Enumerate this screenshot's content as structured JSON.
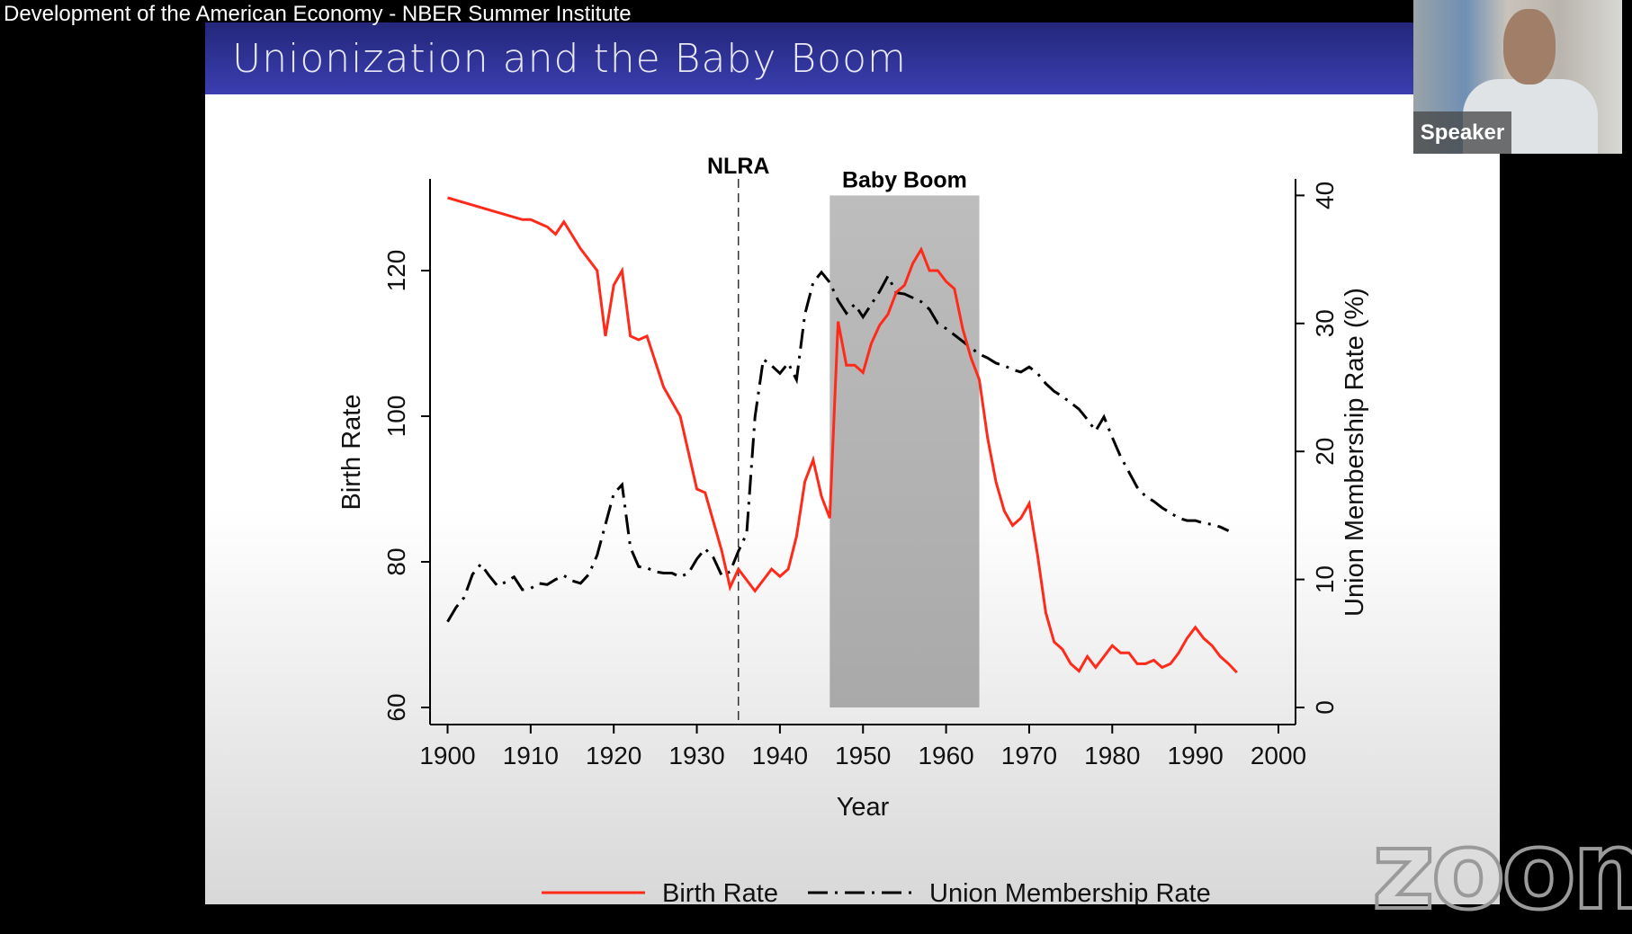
{
  "window_title": "Development of the American Economy - NBER Summer Institute",
  "slide_title": "Unionization and the Baby Boom",
  "speaker_label": "Speaker",
  "watermark": "zoom",
  "colors": {
    "birth_rate": "#ff2a1a",
    "union": "#000000",
    "banner": "#2f32a0",
    "shade": "#bdbdbd"
  },
  "chart_data": {
    "type": "line",
    "xlabel": "Year",
    "ylabel_left": "Birth Rate",
    "ylabel_right": "Union Membership Rate (%)",
    "xlim": [
      1898,
      2000
    ],
    "ylim_left": [
      57,
      132
    ],
    "ylim_right": [
      0,
      40
    ],
    "x_ticks": [
      "1900",
      "1910",
      "1920",
      "1930",
      "1940",
      "1950",
      "1960",
      "1970",
      "1980",
      "1990",
      "2000"
    ],
    "y_left_ticks": [
      "60",
      "80",
      "100",
      "120"
    ],
    "y_right_ticks": [
      "0",
      "10",
      "20",
      "30",
      "40"
    ],
    "annotations": [
      {
        "label": "NLRA",
        "type": "vline",
        "x": 1935
      },
      {
        "label": "Baby Boom",
        "type": "span",
        "x": [
          1946,
          1964
        ]
      }
    ],
    "legend": [
      "Birth Rate",
      "Union Membership Rate"
    ],
    "legend_position": "bottom",
    "series": [
      {
        "name": "Birth Rate",
        "axis": "left",
        "x": [
          1900,
          1909,
          1910,
          1912,
          1913,
          1914,
          1916,
          1918,
          1919,
          1920,
          1921,
          1922,
          1923,
          1924,
          1926,
          1928,
          1930,
          1931,
          1933,
          1934,
          1935,
          1937,
          1939,
          1940,
          1941,
          1942,
          1943,
          1944,
          1945,
          1946,
          1947,
          1948,
          1949,
          1950,
          1951,
          1952,
          1953,
          1954,
          1955,
          1956,
          1957,
          1958,
          1959,
          1960,
          1961,
          1962,
          1963,
          1964,
          1965,
          1966,
          1967,
          1968,
          1969,
          1970,
          1971,
          1972,
          1973,
          1974,
          1975,
          1976,
          1977,
          1978,
          1979,
          1980,
          1981,
          1982,
          1983,
          1984,
          1985,
          1986,
          1987,
          1988,
          1989,
          1990,
          1991,
          1992,
          1993,
          1994,
          1995
        ],
        "values": [
          130,
          127,
          127,
          126,
          125,
          126.7,
          123,
          120,
          111,
          118,
          120,
          111,
          110.5,
          111,
          104,
          100,
          90,
          89.5,
          81.5,
          76.5,
          79,
          76,
          79,
          78,
          79,
          83.5,
          91,
          94,
          89,
          86,
          113,
          107,
          107,
          106,
          110,
          112.5,
          114,
          117,
          118,
          121,
          122.9,
          120,
          120,
          118.5,
          117.5,
          112,
          108,
          105,
          97,
          91,
          87,
          85,
          86,
          88,
          81,
          73,
          69,
          68,
          66,
          65,
          67,
          65.5,
          67,
          68.5,
          67.5,
          67.5,
          66,
          66,
          66.5,
          65.5,
          66,
          67.5,
          69.5,
          71,
          69.5,
          68.5,
          67,
          66,
          64.8
        ]
      },
      {
        "name": "Union Membership Rate",
        "axis": "right",
        "x": [
          1900,
          1901,
          1902,
          1903,
          1904,
          1905,
          1906,
          1907,
          1908,
          1909,
          1910,
          1911,
          1912,
          1913,
          1914,
          1915,
          1916,
          1917,
          1918,
          1919,
          1920,
          1921,
          1922,
          1923,
          1924,
          1925,
          1926,
          1927,
          1928,
          1929,
          1930,
          1931,
          1932,
          1933,
          1934,
          1935,
          1936,
          1937,
          1938,
          1939,
          1940,
          1941,
          1942,
          1943,
          1944,
          1945,
          1946,
          1947,
          1948,
          1949,
          1950,
          1951,
          1952,
          1953,
          1954,
          1955,
          1956,
          1957,
          1958,
          1959,
          1960,
          1961,
          1962,
          1963,
          1964,
          1965,
          1966,
          1967,
          1968,
          1969,
          1970,
          1971,
          1972,
          1973,
          1974,
          1975,
          1976,
          1977,
          1978,
          1979,
          1980,
          1981,
          1982,
          1983,
          1984,
          1985,
          1986,
          1987,
          1988,
          1989,
          1990,
          1991,
          1992,
          1993,
          1994
        ],
        "values": [
          6.7,
          7.8,
          8.6,
          10.4,
          11.2,
          10.3,
          9.5,
          9.8,
          10.2,
          9.2,
          9.3,
          9.7,
          9.6,
          10,
          10.3,
          9.9,
          9.7,
          10.4,
          11.9,
          14.3,
          16.7,
          17.4,
          12.5,
          11,
          10.9,
          10.6,
          10.5,
          10.5,
          10.2,
          10.5,
          11.6,
          12.4,
          11.7,
          10.3,
          10.6,
          12.2,
          13.6,
          22.7,
          27.2,
          26.7,
          26.1,
          26.9,
          25.6,
          30.7,
          33.2,
          34,
          33.2,
          31.8,
          30.8,
          31.5,
          30.5,
          31.5,
          32.5,
          33.7,
          32.4,
          32.3,
          32,
          31.7,
          31.1,
          30,
          29.6,
          29.1,
          28.6,
          28.1,
          27.6,
          27.3,
          26.9,
          26.7,
          26.4,
          26.2,
          26.6,
          26.1,
          25.3,
          24.7,
          24.3,
          23.8,
          23.3,
          22.5,
          21.6,
          22.7,
          21.1,
          19.6,
          18.4,
          17.2,
          16.5,
          16.1,
          15.6,
          15.2,
          14.8,
          14.6,
          14.6,
          14.4,
          14.3,
          14.1,
          13.8
        ]
      }
    ]
  }
}
